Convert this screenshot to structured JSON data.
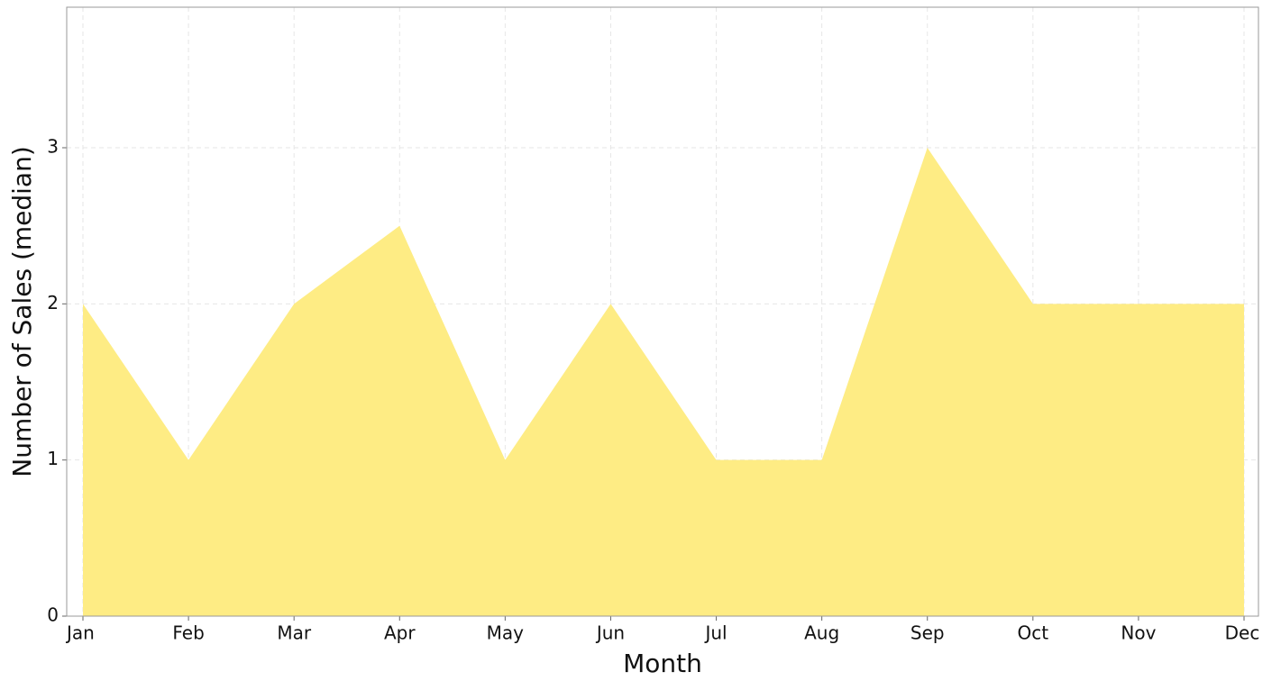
{
  "chart_data": {
    "type": "area",
    "x_label": "Month",
    "y_label": "Number of Sales (median)",
    "categories": [
      "Jan",
      "Feb",
      "Mar",
      "Apr",
      "May",
      "Jun",
      "Jul",
      "Aug",
      "Sep",
      "Oct",
      "Nov",
      "Dec"
    ],
    "values": [
      2,
      1,
      2,
      2.5,
      1,
      2,
      1,
      1,
      3,
      2,
      2,
      2
    ],
    "color": "#feec84",
    "ylim": [
      0,
      3.9
    ],
    "yticks": [
      0,
      1,
      2,
      3
    ],
    "grid": true
  }
}
